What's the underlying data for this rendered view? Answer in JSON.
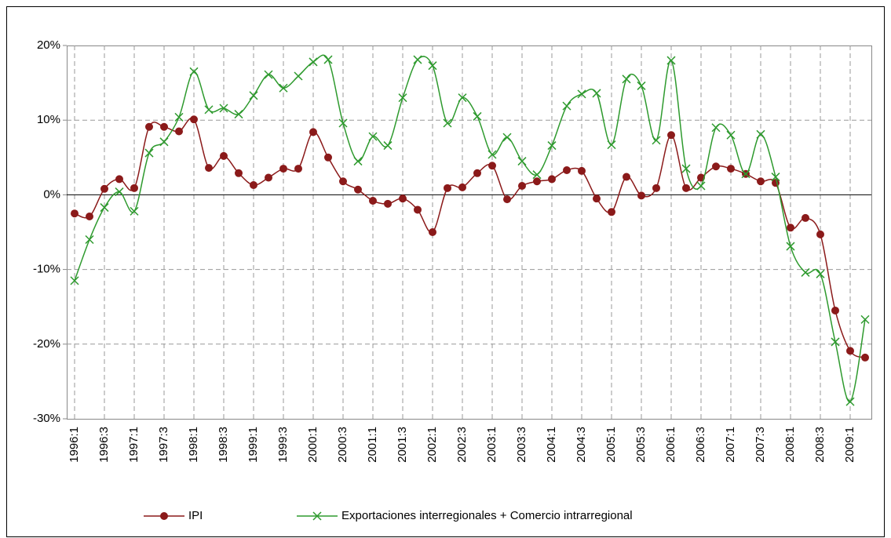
{
  "chart_data": {
    "type": "line",
    "categories": [
      "1996:1",
      null,
      "1996:3",
      null,
      "1997:1",
      null,
      "1997:3",
      null,
      "1998:1",
      null,
      "1998:3",
      null,
      "1999:1",
      null,
      "1999:3",
      null,
      "2000:1",
      null,
      "2000:3",
      null,
      "2001:1",
      null,
      "2001:3",
      null,
      "2002:1",
      null,
      "2002:3",
      null,
      "2003:1",
      null,
      "2003:3",
      null,
      "2004:1",
      null,
      "2004:3",
      null,
      "2005:1",
      null,
      "2005:3",
      null,
      "2006:1",
      null,
      "2006:3",
      null,
      "2007:1",
      null,
      "2007:3",
      null,
      "2008:1",
      null,
      "2008:3",
      null,
      "2009:1",
      null
    ],
    "series": [
      {
        "name": "IPI",
        "color": "#8b1a1a",
        "marker": "circle",
        "values": [
          -2.5,
          -2.9,
          0.8,
          2.1,
          0.9,
          9.1,
          9.1,
          8.5,
          10.1,
          3.6,
          5.2,
          2.9,
          1.3,
          2.3,
          3.5,
          3.5,
          8.4,
          5.0,
          1.8,
          0.7,
          -0.8,
          -1.2,
          -0.5,
          -2.0,
          -5.0,
          0.9,
          1.0,
          2.9,
          3.9,
          -0.6,
          1.2,
          1.8,
          2.1,
          3.3,
          3.2,
          -0.5,
          -2.3,
          2.4,
          -0.1,
          0.9,
          8.0,
          0.9,
          2.3,
          3.8,
          3.5,
          2.8,
          1.8,
          1.6,
          -4.4,
          -3.1,
          -5.3,
          -15.5,
          -20.9,
          -21.8
        ]
      },
      {
        "name": "Exportaciones interregionales + Comercio intrarregional",
        "color": "#2e9a2e",
        "marker": "x",
        "values": [
          -11.5,
          -6.0,
          -1.7,
          0.4,
          -2.2,
          5.6,
          7.1,
          10.4,
          16.5,
          11.4,
          11.6,
          10.8,
          13.3,
          16.1,
          14.3,
          15.9,
          17.8,
          18.1,
          9.6,
          4.5,
          7.8,
          6.6,
          13.0,
          18.1,
          17.3,
          9.6,
          13.0,
          10.5,
          5.4,
          7.7,
          4.5,
          2.7,
          6.6,
          11.9,
          13.5,
          13.6,
          6.7,
          15.5,
          14.6,
          7.3,
          18.0,
          3.5,
          1.2,
          9.0,
          8.0,
          2.8,
          8.1,
          2.4,
          -6.9,
          -10.4,
          -10.6,
          -19.7,
          -27.7,
          -16.7
        ]
      }
    ],
    "ylim": [
      -30,
      20
    ],
    "yticks": [
      {
        "value": -30,
        "label": "-30%"
      },
      {
        "value": -20,
        "label": "-20%"
      },
      {
        "value": -10,
        "label": "-10%"
      },
      {
        "value": 0,
        "label": "0%"
      },
      {
        "value": 10,
        "label": "10%"
      },
      {
        "value": 20,
        "label": "20%"
      }
    ],
    "grid": true,
    "smooth": true,
    "legend": "bottom"
  }
}
